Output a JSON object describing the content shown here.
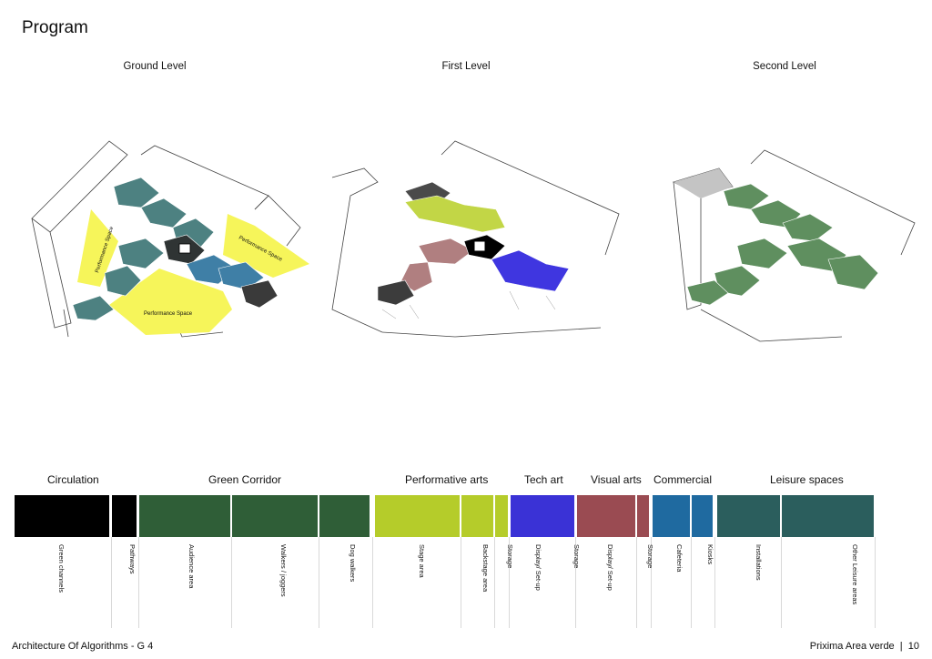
{
  "page": {
    "title": "Program"
  },
  "levels": [
    {
      "title": "Ground Level",
      "labels": [
        "Performance Space",
        "Performance Space",
        "Performance Space"
      ]
    },
    {
      "title": "First Level"
    },
    {
      "title": "Second Level"
    }
  ],
  "legend": {
    "categories": [
      {
        "name": "Circulation",
        "color": "#000000",
        "items": [
          "Green channels",
          "Pathways"
        ]
      },
      {
        "name": "Green Corridor",
        "color": "#2f5e37",
        "items": [
          "Audience area",
          "Walkers / joggers",
          "Dog walkers"
        ]
      },
      {
        "name": "Performative arts",
        "color": "#b5cc2a",
        "items": [
          "Stage area",
          "Backstage area",
          "Storage"
        ]
      },
      {
        "name": "Tech art",
        "color": "#3a32d6",
        "items": [
          "Display/ Set-up",
          "Storage"
        ]
      },
      {
        "name": "Visual arts",
        "color": "#9a4b52",
        "items": [
          "Display/ Set-up",
          "Storage"
        ]
      },
      {
        "name": "Commercial",
        "color": "#1f6aa0",
        "items": [
          "Cafeteria",
          "Kiosks"
        ]
      },
      {
        "name": "Leisure spaces",
        "color": "#2b5e5d",
        "items": [
          "Installations",
          "Other Leisure areas"
        ]
      }
    ]
  },
  "footer": {
    "left": "Architecture Of Algorithms - G 4",
    "right": "Prixima Area verde  |  10"
  }
}
